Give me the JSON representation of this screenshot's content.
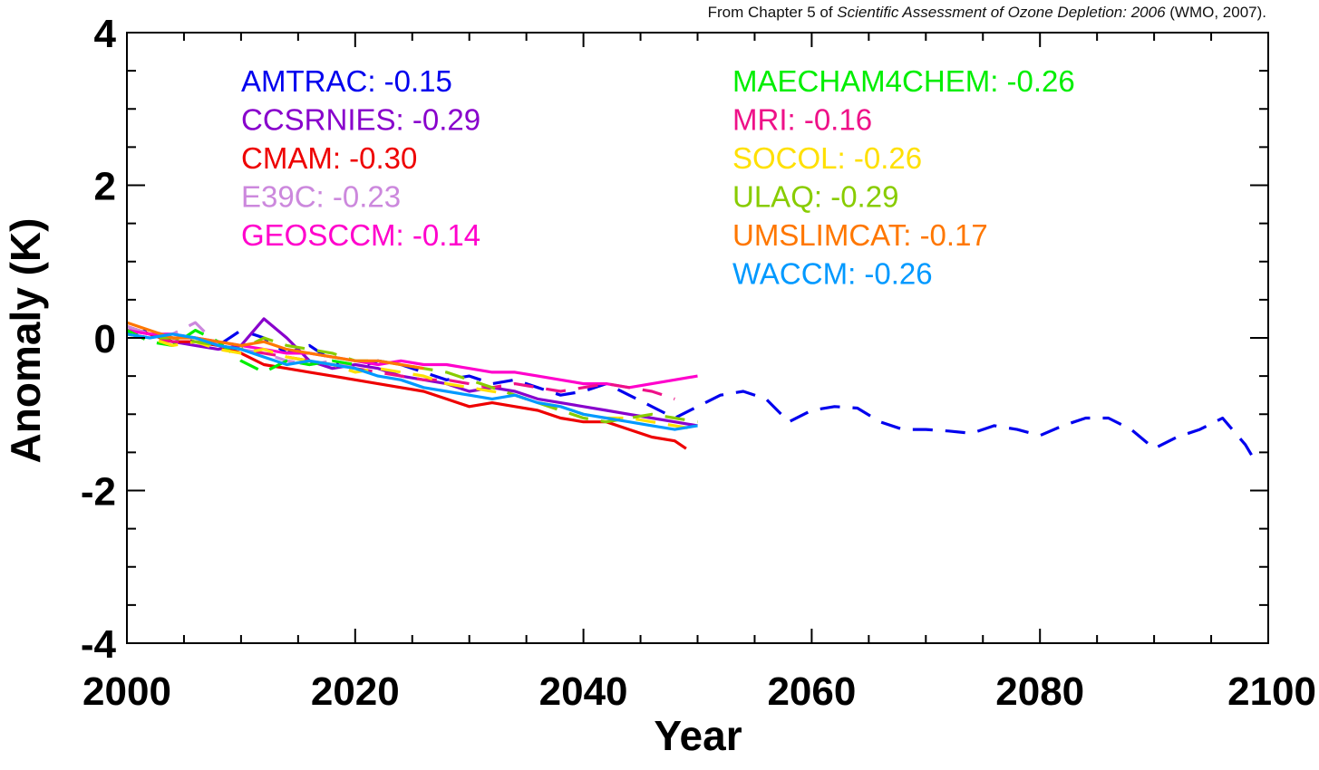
{
  "attribution": {
    "prefix": "From Chapter 5 of ",
    "title": "Scientific Assessment of Ozone Depletion: 2006",
    "suffix": " (WMO, 2007)."
  },
  "chart_data": {
    "type": "line",
    "title": "",
    "xlabel": "Year",
    "ylabel": "Anomaly (K)",
    "xlim": [
      2000,
      2100
    ],
    "ylim": [
      -4,
      4
    ],
    "xticks": [
      "2000",
      "2020",
      "2040",
      "2060",
      "2080",
      "2100"
    ],
    "yticks": [
      "-4",
      "-2",
      "0",
      "2",
      "4"
    ],
    "legend_position": "top",
    "series": [
      {
        "name": "AMTRAC: -0.15",
        "color": "#0000ee",
        "dash": true,
        "x": [
          2000,
          2002,
          2004,
          2006,
          2008,
          2010,
          2012,
          2014,
          2016,
          2018,
          2020,
          2022,
          2024,
          2026,
          2028,
          2030,
          2032,
          2034,
          2036,
          2038,
          2040,
          2042,
          2044,
          2046,
          2048,
          2050,
          2052,
          2054,
          2056,
          2058,
          2060,
          2062,
          2064,
          2066,
          2068,
          2070,
          2072,
          2074,
          2076,
          2078,
          2080,
          2082,
          2084,
          2086,
          2088,
          2090,
          2092,
          2094,
          2096,
          2098,
          2099
        ],
        "y": [
          0.05,
          0.1,
          0.0,
          -0.05,
          -0.1,
          0.1,
          0.0,
          -0.2,
          -0.1,
          -0.3,
          -0.4,
          -0.3,
          -0.35,
          -0.45,
          -0.55,
          -0.5,
          -0.6,
          -0.55,
          -0.65,
          -0.75,
          -0.7,
          -0.6,
          -0.75,
          -0.9,
          -1.05,
          -0.9,
          -0.75,
          -0.7,
          -0.8,
          -1.1,
          -0.95,
          -0.9,
          -0.92,
          -1.1,
          -1.2,
          -1.2,
          -1.22,
          -1.25,
          -1.15,
          -1.2,
          -1.28,
          -1.15,
          -1.05,
          -1.05,
          -1.2,
          -1.45,
          -1.3,
          -1.2,
          -1.05,
          -1.4,
          -1.65
        ]
      },
      {
        "name": "CCSRNIES: -0.29",
        "color": "#8800cc",
        "dash": false,
        "x": [
          2000,
          2002,
          2004,
          2006,
          2008,
          2010,
          2012,
          2014,
          2016,
          2018,
          2020,
          2022,
          2024,
          2026,
          2028,
          2030,
          2032,
          2034,
          2036,
          2038,
          2040,
          2042,
          2044,
          2046,
          2048,
          2050
        ],
        "y": [
          0.1,
          0.05,
          -0.05,
          -0.1,
          -0.15,
          -0.1,
          0.25,
          0.0,
          -0.3,
          -0.4,
          -0.35,
          -0.4,
          -0.5,
          -0.55,
          -0.6,
          -0.7,
          -0.65,
          -0.7,
          -0.8,
          -0.85,
          -0.9,
          -0.95,
          -1.0,
          -1.05,
          -1.1,
          -1.15
        ]
      },
      {
        "name": "CMAM: -0.30",
        "color": "#ee0000",
        "dash": false,
        "x": [
          2000,
          2002,
          2004,
          2006,
          2008,
          2010,
          2012,
          2014,
          2016,
          2018,
          2020,
          2022,
          2024,
          2026,
          2028,
          2030,
          2032,
          2034,
          2036,
          2038,
          2040,
          2042,
          2044,
          2046,
          2048,
          2049
        ],
        "y": [
          0.15,
          0.05,
          -0.05,
          -0.05,
          -0.1,
          -0.2,
          -0.35,
          -0.4,
          -0.45,
          -0.5,
          -0.55,
          -0.6,
          -0.65,
          -0.7,
          -0.8,
          -0.9,
          -0.85,
          -0.9,
          -0.95,
          -1.05,
          -1.1,
          -1.1,
          -1.2,
          -1.3,
          -1.35,
          -1.45
        ]
      },
      {
        "name": "E39C: -0.23",
        "color": "#cc88dd",
        "dash": true,
        "x": [
          2000,
          2002,
          2004,
          2006,
          2008,
          2010,
          2012,
          2014,
          2016,
          2018,
          2020
        ],
        "y": [
          0.15,
          0.05,
          0.05,
          0.2,
          -0.1,
          -0.15,
          -0.2,
          -0.3,
          -0.35,
          -0.3,
          -0.4
        ]
      },
      {
        "name": "GEOSCCM: -0.14",
        "color": "#ff00cc",
        "dash": false,
        "x": [
          2000,
          2002,
          2004,
          2006,
          2008,
          2010,
          2012,
          2014,
          2016,
          2018,
          2020,
          2022,
          2024,
          2026,
          2028,
          2030,
          2032,
          2034,
          2036,
          2038,
          2040,
          2042,
          2044,
          2046,
          2048,
          2050
        ],
        "y": [
          0.1,
          0.05,
          0.05,
          0.0,
          -0.05,
          -0.1,
          -0.15,
          -0.2,
          -0.2,
          -0.25,
          -0.3,
          -0.35,
          -0.3,
          -0.35,
          -0.35,
          -0.4,
          -0.45,
          -0.45,
          -0.5,
          -0.55,
          -0.6,
          -0.6,
          -0.65,
          -0.6,
          -0.55,
          -0.5
        ]
      },
      {
        "name": "MAECHAM4CHEM: -0.26",
        "color": "#00ee00",
        "dash": true,
        "x": [
          2000,
          2002,
          2004,
          2006,
          2008,
          2010,
          2012,
          2014,
          2016,
          2018,
          2020
        ],
        "y": [
          0.1,
          -0.05,
          -0.1,
          0.1,
          -0.05,
          -0.3,
          -0.45,
          -0.3,
          -0.35,
          -0.3,
          -0.35
        ]
      },
      {
        "name": "MRI: -0.16",
        "color": "#ee1188",
        "dash": true,
        "x": [
          2000,
          2002,
          2004,
          2006,
          2008,
          2010,
          2012,
          2014,
          2016,
          2018,
          2020,
          2022,
          2024,
          2026,
          2028,
          2030,
          2032,
          2034,
          2036,
          2038,
          2040,
          2042,
          2044,
          2046,
          2048
        ],
        "y": [
          0.05,
          0.0,
          -0.05,
          -0.05,
          -0.1,
          -0.15,
          -0.2,
          -0.25,
          -0.3,
          -0.35,
          -0.4,
          -0.45,
          -0.5,
          -0.55,
          -0.55,
          -0.6,
          -0.65,
          -0.6,
          -0.65,
          -0.7,
          -0.65,
          -0.6,
          -0.65,
          -0.7,
          -0.8
        ]
      },
      {
        "name": "SOCOL: -0.26",
        "color": "#ffe000",
        "dash": true,
        "x": [
          2000,
          2002,
          2004,
          2006,
          2008,
          2010,
          2012,
          2014,
          2016,
          2018,
          2020,
          2022,
          2024,
          2026,
          2028,
          2030,
          2032,
          2034,
          2036,
          2038,
          2040,
          2042,
          2044,
          2046,
          2048,
          2050
        ],
        "y": [
          0.05,
          0.0,
          -0.1,
          -0.05,
          -0.15,
          -0.2,
          -0.15,
          -0.25,
          -0.3,
          -0.35,
          -0.45,
          -0.4,
          -0.45,
          -0.5,
          -0.6,
          -0.65,
          -0.7,
          -0.75,
          -0.85,
          -0.9,
          -1.0,
          -1.05,
          -1.05,
          -1.1,
          -1.15,
          -1.2
        ]
      },
      {
        "name": "ULAQ: -0.29",
        "color": "#88cc00",
        "dash": true,
        "x": [
          2000,
          2002,
          2004,
          2006,
          2008,
          2010,
          2012,
          2014,
          2016,
          2018,
          2020,
          2022,
          2024,
          2026,
          2028,
          2030,
          2032,
          2034,
          2036,
          2038,
          2040,
          2042,
          2044,
          2046,
          2048,
          2050
        ],
        "y": [
          0.05,
          0.0,
          0.0,
          -0.05,
          -0.1,
          -0.15,
          0.0,
          -0.1,
          -0.15,
          -0.2,
          -0.3,
          -0.3,
          -0.35,
          -0.4,
          -0.45,
          -0.55,
          -0.65,
          -0.75,
          -0.85,
          -0.95,
          -1.05,
          -1.1,
          -1.05,
          -1.0,
          -1.05,
          -1.1
        ]
      },
      {
        "name": "UMSLIMCAT: -0.17",
        "color": "#ff7700",
        "dash": false,
        "x": [
          2000,
          2002,
          2004,
          2006,
          2008,
          2010,
          2012,
          2014,
          2016,
          2018,
          2020,
          2022,
          2024,
          2026
        ],
        "y": [
          0.2,
          0.1,
          0.0,
          0.0,
          -0.05,
          -0.1,
          -0.05,
          -0.15,
          -0.2,
          -0.25,
          -0.3,
          -0.3,
          -0.35,
          -0.4
        ]
      },
      {
        "name": "WACCM: -0.26",
        "color": "#0099ff",
        "dash": false,
        "x": [
          2000,
          2002,
          2004,
          2006,
          2008,
          2010,
          2012,
          2014,
          2016,
          2018,
          2020,
          2022,
          2024,
          2026,
          2028,
          2030,
          2032,
          2034,
          2036,
          2038,
          2040,
          2042,
          2044,
          2046,
          2048,
          2050
        ],
        "y": [
          0.05,
          0.0,
          0.05,
          0.0,
          -0.1,
          -0.15,
          -0.25,
          -0.35,
          -0.3,
          -0.35,
          -0.4,
          -0.5,
          -0.55,
          -0.65,
          -0.7,
          -0.75,
          -0.8,
          -0.75,
          -0.85,
          -0.9,
          -1.0,
          -1.05,
          -1.1,
          -1.15,
          -1.2,
          -1.15
        ]
      }
    ]
  }
}
